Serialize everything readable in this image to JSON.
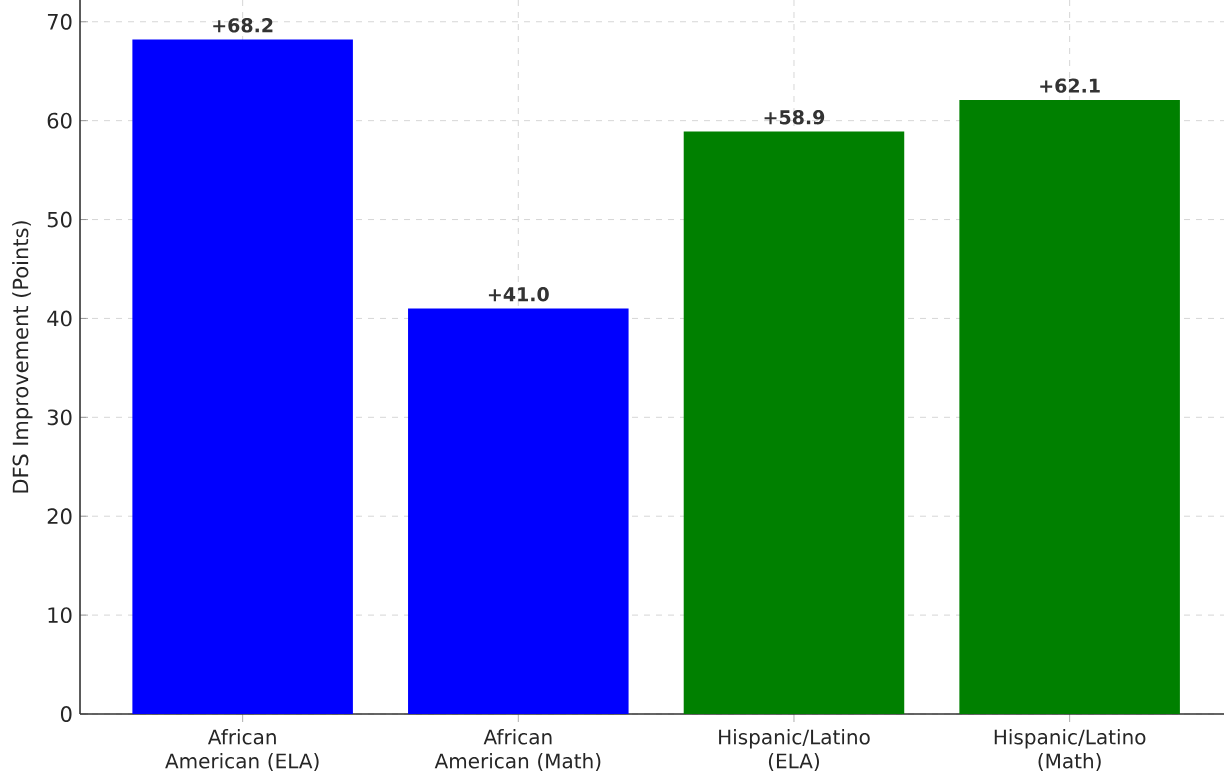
{
  "chart_data": {
    "type": "bar",
    "ylabel": "DFS Improvement (Points)",
    "categories": [
      "African American (ELA)",
      "African American (Math)",
      "Hispanic/Latino (ELA)",
      "Hispanic/Latino (Math)"
    ],
    "values": [
      68.2,
      41.0,
      58.9,
      62.1
    ],
    "colors": [
      "#0000ff",
      "#0000ff",
      "#008000",
      "#008000"
    ],
    "value_labels": [
      "+68.2",
      "+41.0",
      "+58.9",
      "+62.1"
    ],
    "ylim": [
      0,
      72.2
    ],
    "yticks": [
      0,
      10,
      20,
      30,
      40,
      50,
      60,
      70
    ],
    "grid": true
  }
}
